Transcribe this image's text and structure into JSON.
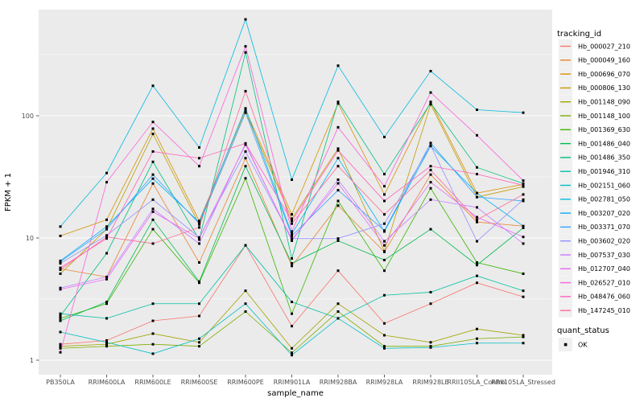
{
  "chart_data": {
    "type": "line",
    "title": "",
    "xlabel": "sample_name",
    "ylabel": "FPKM + 1",
    "yscale": "log10",
    "yticks": [
      1,
      10,
      100
    ],
    "ytick_labels": [
      "1",
      "10",
      "100"
    ],
    "yminor": [
      3.162,
      31.62,
      316.2
    ],
    "ylim": [
      0.76,
      740
    ],
    "grid": "on",
    "panel_bg": "#EBEBEB",
    "grid_color": "#FFFFFF",
    "tick_text_color": "#4D4D4D",
    "point_shape": "black-square",
    "point_color": "#000000",
    "legend_title": "tracking_id",
    "quant_legend_title": "quant_status",
    "quant_legend_items": [
      "OK"
    ],
    "categories": [
      "PB350LA",
      "RRIM600LA",
      "RRIM600LE",
      "RRIM600SE",
      "RRIM600PE",
      "RRIM901LA",
      "RRIM928BA",
      "RRIM928LA",
      "RRIM928LE",
      "RRII105LA_Control",
      "RRII105LA_Stressed"
    ],
    "series": [
      {
        "name": "Hb_000027_210",
        "color": "#F8766D",
        "values": [
          1.35,
          1.45,
          2.1,
          2.3,
          8.7,
          1.9,
          5.4,
          2.0,
          2.9,
          4.3,
          3.3
        ]
      },
      {
        "name": "Hb_000049_160",
        "color": "#EA8331",
        "values": [
          5.6,
          4.8,
          27.9,
          6.3,
          45,
          5.9,
          18.4,
          7.7,
          33,
          13.5,
          12.5
        ]
      },
      {
        "name": "Hb_000696_070",
        "color": "#D89000",
        "values": [
          10.4,
          14.1,
          78.5,
          13.8,
          112,
          15.6,
          126,
          22.7,
          130,
          23.3,
          27.5
        ]
      },
      {
        "name": "Hb_000806_130",
        "color": "#C09B00",
        "values": [
          5.1,
          11.8,
          71,
          12.9,
          107,
          14.4,
          53.9,
          7.8,
          124,
          21.6,
          26.3
        ]
      },
      {
        "name": "Hb_001148_090",
        "color": "#A3A500",
        "values": [
          1.3,
          1.35,
          1.65,
          1.4,
          3.7,
          1.25,
          2.9,
          1.6,
          1.4,
          1.8,
          1.6
        ]
      },
      {
        "name": "Hb_001148_100",
        "color": "#7CAE00",
        "values": [
          1.25,
          1.3,
          1.35,
          1.3,
          2.5,
          1.15,
          2.5,
          1.3,
          1.3,
          1.5,
          1.55
        ]
      },
      {
        "name": "Hb_001369_630",
        "color": "#39B600",
        "values": [
          2.2,
          2.9,
          11.8,
          4.3,
          30.8,
          2.4,
          20.1,
          5.4,
          25.5,
          6.3,
          5.1
        ]
      },
      {
        "name": "Hb_001486_040",
        "color": "#00BB4E",
        "values": [
          2.1,
          3.0,
          14.1,
          4.4,
          38.7,
          6.2,
          9.5,
          6.6,
          11.8,
          6.0,
          12.1
        ]
      },
      {
        "name": "Hb_001486_350",
        "color": "#00BF7D",
        "values": [
          2.3,
          7.5,
          42,
          9.7,
          330,
          6.8,
          130,
          33.3,
          127,
          37.8,
          27.9
        ]
      },
      {
        "name": "Hb_001946_310",
        "color": "#00C1A3",
        "values": [
          2.4,
          2.2,
          2.9,
          2.9,
          8.7,
          3.0,
          2.2,
          3.4,
          3.6,
          4.9,
          3.7
        ]
      },
      {
        "name": "Hb_002151_060",
        "color": "#00BFC4",
        "values": [
          1.7,
          1.4,
          1.13,
          1.5,
          2.9,
          1.1,
          2.2,
          1.25,
          1.27,
          1.38,
          1.38
        ]
      },
      {
        "name": "Hb_002781_050",
        "color": "#00BAE0",
        "values": [
          12.4,
          34,
          176,
          55,
          615,
          30,
          257,
          67,
          232,
          112,
          106
        ]
      },
      {
        "name": "Hb_003207_020",
        "color": "#00B0F6",
        "values": [
          6.5,
          12.4,
          30.6,
          13.5,
          115,
          10.8,
          45,
          11.3,
          56.5,
          23.3,
          12.5
        ]
      },
      {
        "name": "Hb_003371_070",
        "color": "#35A2FF",
        "values": [
          6.4,
          11.8,
          33,
          13.1,
          106,
          10.4,
          24.6,
          11.5,
          59.9,
          21.6,
          20.1
        ]
      },
      {
        "name": "Hb_003602_020",
        "color": "#9590FF",
        "values": [
          6.2,
          10.5,
          20.6,
          10.1,
          51,
          9.9,
          9.9,
          13.1,
          57,
          9.4,
          20.6
        ]
      },
      {
        "name": "Hb_007537_030",
        "color": "#C77CFF",
        "values": [
          3.9,
          4.8,
          17.3,
          9.0,
          59.4,
          9.5,
          30,
          9.4,
          20.6,
          17.8,
          9.0
        ]
      },
      {
        "name": "Hb_012707_040",
        "color": "#E76BF3",
        "values": [
          3.8,
          4.6,
          16.4,
          9.9,
          58,
          9.7,
          28,
          8.7,
          28.6,
          14.8,
          10.2
        ]
      },
      {
        "name": "Hb_026527_010",
        "color": "#FA62DB",
        "values": [
          1.16,
          28.6,
          89,
          38.7,
          370,
          11.3,
          80.5,
          26.5,
          155,
          69.2,
          29.5
        ]
      },
      {
        "name": "Hb_048476_060",
        "color": "#FF62BC",
        "values": [
          5.7,
          9.9,
          51,
          45,
          59.4,
          13.8,
          52,
          20.1,
          38.7,
          33.3,
          27
        ]
      },
      {
        "name": "Hb_147245_010",
        "color": "#FF6A98",
        "values": [
          5.5,
          10.2,
          9.0,
          12.2,
          159,
          13.1,
          38.7,
          15.6,
          36,
          14.1,
          22.7
        ]
      }
    ]
  }
}
